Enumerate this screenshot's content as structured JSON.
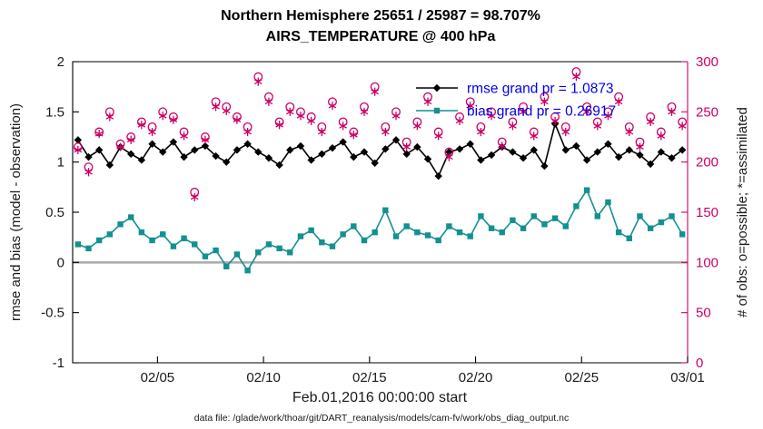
{
  "title": {
    "line1": "Northern Hemisphere 25651 / 25987 = 98.707%",
    "line2": "AIRS_TEMPERATURE @ 400 hPa"
  },
  "footer": "data file: /glade/work/thoar/git/DART_reanalysis/models/cam-fv/work/obs_diag_output.nc",
  "colors": {
    "rmse": "#000000",
    "bias": "#12918f",
    "obs": "#cc0066",
    "legend_text": "#0000ee",
    "zero_line": "#aaaaaa",
    "axis": "#000000"
  },
  "chart_data": {
    "type": "line",
    "title": "Northern Hemisphere 25651 / 25987 = 98.707% | AIRS_TEMPERATURE @ 400 hPa",
    "xlabel": "Feb.01,2016 00:00:00 start",
    "ylabel_left": "rmse and bias (model - observation)",
    "ylabel_right": "# of obs: o=possible; *=assimilated",
    "xlim_days": [
      0,
      29
    ],
    "x_ticks": [
      {
        "day": 4,
        "label": "02/05"
      },
      {
        "day": 9,
        "label": "02/10"
      },
      {
        "day": 14,
        "label": "02/15"
      },
      {
        "day": 19,
        "label": "02/20"
      },
      {
        "day": 24,
        "label": "02/25"
      },
      {
        "day": 29,
        "label": "03/01"
      }
    ],
    "ylim_left": [
      -1,
      2
    ],
    "yticks_left": [
      -1,
      -0.5,
      0,
      0.5,
      1,
      1.5,
      2
    ],
    "ylim_right": [
      0,
      300
    ],
    "yticks_right": [
      0,
      50,
      100,
      150,
      200,
      250,
      300
    ],
    "legend": [
      "rmse grand pr = 1.0873",
      "bias grand pr = 0.26917"
    ],
    "x_days": [
      0.25,
      0.75,
      1.25,
      1.75,
      2.25,
      2.75,
      3.25,
      3.75,
      4.25,
      4.75,
      5.25,
      5.75,
      6.25,
      6.75,
      7.25,
      7.75,
      8.25,
      8.75,
      9.25,
      9.75,
      10.25,
      10.75,
      11.25,
      11.75,
      12.25,
      12.75,
      13.25,
      13.75,
      14.25,
      14.75,
      15.25,
      15.75,
      16.25,
      16.75,
      17.25,
      17.75,
      18.25,
      18.75,
      19.25,
      19.75,
      20.25,
      20.75,
      21.25,
      21.75,
      22.25,
      22.75,
      23.25,
      23.75,
      24.25,
      24.75,
      25.25,
      25.75,
      26.25,
      26.75,
      27.25,
      27.75,
      28.25,
      28.75
    ],
    "series": [
      {
        "key": "rmse",
        "name": "rmse grand pr = 1.0873",
        "marker": "diamond",
        "color": "#000000",
        "axis": "left",
        "line": true,
        "values": [
          1.22,
          1.05,
          1.12,
          0.97,
          1.15,
          1.08,
          1.02,
          1.18,
          1.1,
          1.2,
          1.05,
          1.12,
          1.16,
          1.06,
          1.0,
          1.12,
          1.18,
          1.1,
          1.04,
          0.97,
          1.12,
          1.16,
          1.02,
          1.08,
          1.14,
          1.2,
          1.05,
          1.1,
          0.99,
          1.13,
          1.22,
          1.08,
          1.15,
          1.03,
          0.86,
          1.1,
          1.13,
          1.18,
          1.02,
          1.07,
          1.15,
          1.1,
          1.04,
          1.12,
          0.96,
          1.38,
          1.12,
          1.16,
          1.02,
          1.1,
          1.18,
          1.05,
          1.12,
          1.07,
          0.98,
          1.1,
          1.04,
          1.12
        ]
      },
      {
        "key": "bias",
        "name": "bias grand pr = 0.26917",
        "marker": "square",
        "color": "#12918f",
        "axis": "left",
        "line": true,
        "values": [
          0.18,
          0.14,
          0.22,
          0.28,
          0.38,
          0.45,
          0.3,
          0.22,
          0.28,
          0.16,
          0.24,
          0.18,
          0.06,
          0.12,
          -0.04,
          0.08,
          -0.08,
          0.1,
          0.18,
          0.14,
          0.1,
          0.26,
          0.32,
          0.2,
          0.16,
          0.28,
          0.36,
          0.22,
          0.3,
          0.52,
          0.26,
          0.36,
          0.3,
          0.27,
          0.22,
          0.36,
          0.3,
          0.26,
          0.46,
          0.34,
          0.3,
          0.42,
          0.34,
          0.46,
          0.38,
          0.44,
          0.36,
          0.56,
          0.72,
          0.46,
          0.6,
          0.3,
          0.24,
          0.46,
          0.34,
          0.4,
          0.46,
          0.28
        ]
      },
      {
        "key": "possible",
        "name": "possible",
        "marker": "circle",
        "color": "#cc0066",
        "axis": "right",
        "line": false,
        "values": [
          215,
          195,
          230,
          250,
          218,
          225,
          240,
          235,
          250,
          245,
          230,
          170,
          225,
          260,
          255,
          245,
          235,
          285,
          265,
          240,
          255,
          250,
          245,
          235,
          260,
          240,
          230,
          255,
          275,
          235,
          250,
          220,
          240,
          265,
          230,
          210,
          245,
          260,
          235,
          250,
          220,
          240,
          255,
          230,
          265,
          245,
          235,
          290,
          255,
          240,
          250,
          265,
          235,
          220,
          245,
          230,
          255,
          240
        ]
      },
      {
        "key": "assimilated",
        "name": "assimilated",
        "marker": "asterisk",
        "color": "#cc0066",
        "axis": "right",
        "line": false,
        "values": [
          212,
          190,
          228,
          245,
          215,
          222,
          237,
          230,
          246,
          242,
          226,
          165,
          222,
          255,
          251,
          242,
          230,
          280,
          260,
          237,
          250,
          246,
          241,
          230,
          256,
          236,
          227,
          250,
          270,
          230,
          246,
          215,
          236,
          260,
          226,
          205,
          241,
          256,
          230,
          246,
          216,
          236,
          250,
          226,
          260,
          241,
          230,
          285,
          250,
          236,
          246,
          260,
          230,
          215,
          240,
          226,
          250,
          236
        ]
      }
    ]
  }
}
